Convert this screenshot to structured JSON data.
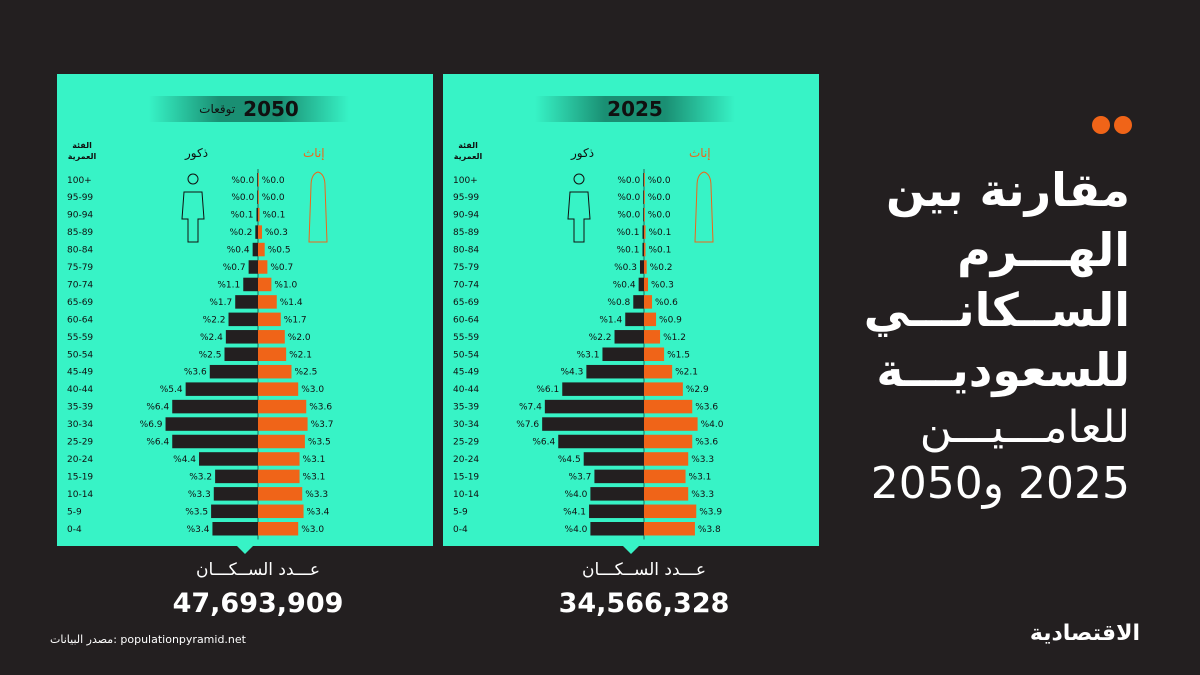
{
  "title": {
    "line1": "مقارنة بين",
    "line2": "الهـــرم",
    "line3": "الســكانـــي",
    "line4": "للسعوديـــة",
    "line5": "للعامـــيـــن",
    "line6": "2025 و2050"
  },
  "colors": {
    "accent": "#f06418",
    "panel": "#37f3c6",
    "background": "#231f20",
    "male_bar": "#231f20",
    "female_bar": "#f06418"
  },
  "source": "مصدر البيانات: populationpyramid.net",
  "logo": "الاقتصادية",
  "chart_data": [
    {
      "type": "bar",
      "year_label": "2050",
      "forecast_label": "توقعات",
      "age_header": "الفئة العمرية",
      "males_label": "ذكور",
      "females_label": "إناث",
      "total_label": "عـــدد الســكـــان",
      "total_value": "47,693,909",
      "categories": [
        "100+",
        "95-99",
        "90-94",
        "85-89",
        "80-84",
        "75-79",
        "70-74",
        "65-69",
        "60-64",
        "55-59",
        "50-54",
        "45-49",
        "40-44",
        "35-39",
        "30-34",
        "25-29",
        "20-24",
        "15-19",
        "10-14",
        "5-9",
        "0-4"
      ],
      "series": [
        {
          "name": "ذكور",
          "values": [
            0.0,
            0.0,
            0.1,
            0.2,
            0.4,
            0.7,
            1.1,
            1.7,
            2.2,
            2.4,
            2.5,
            3.6,
            5.4,
            6.4,
            6.9,
            6.4,
            4.4,
            3.2,
            3.3,
            3.5,
            3.4
          ]
        },
        {
          "name": "إناث",
          "values": [
            0.0,
            0.0,
            0.1,
            0.3,
            0.5,
            0.7,
            1.0,
            1.4,
            1.7,
            2.0,
            2.1,
            2.5,
            3.0,
            3.6,
            3.7,
            3.5,
            3.1,
            3.1,
            3.3,
            3.4,
            3.0
          ]
        }
      ]
    },
    {
      "type": "bar",
      "year_label": "2025",
      "forecast_label": "",
      "age_header": "الفئة العمرية",
      "males_label": "ذكور",
      "females_label": "إناث",
      "total_label": "عـــدد الســكـــان",
      "total_value": "34,566,328",
      "categories": [
        "100+",
        "95-99",
        "90-94",
        "85-89",
        "80-84",
        "75-79",
        "70-74",
        "65-69",
        "60-64",
        "55-59",
        "50-54",
        "45-49",
        "40-44",
        "35-39",
        "30-34",
        "25-29",
        "20-24",
        "15-19",
        "10-14",
        "5-9",
        "0-4"
      ],
      "series": [
        {
          "name": "ذكور",
          "values": [
            0.0,
            0.0,
            0.0,
            0.1,
            0.1,
            0.3,
            0.4,
            0.8,
            1.4,
            2.2,
            3.1,
            4.3,
            6.1,
            7.4,
            7.6,
            6.4,
            4.5,
            3.7,
            4.0,
            4.1,
            4.0
          ]
        },
        {
          "name": "إناث",
          "values": [
            0.0,
            0.0,
            0.0,
            0.1,
            0.1,
            0.2,
            0.3,
            0.6,
            0.9,
            1.2,
            1.5,
            2.1,
            2.9,
            3.6,
            4.0,
            3.6,
            3.3,
            3.1,
            3.3,
            3.9,
            3.8
          ]
        }
      ]
    }
  ]
}
